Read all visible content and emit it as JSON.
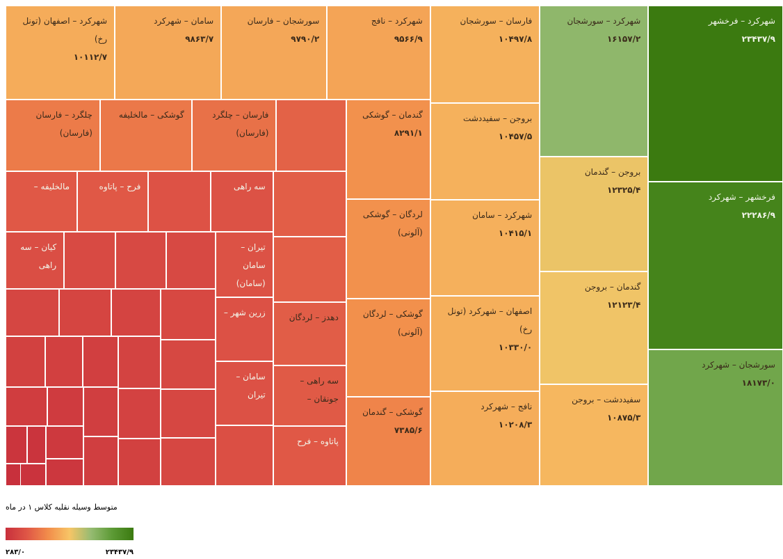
{
  "chart_data": {
    "type": "treemap",
    "categories": [
      "شهرکرد – فرخشهر",
      "فرخشهر – شهرکرد",
      "سورشجان – شهرکرد",
      "شهرکرد – سورشجان",
      "بروجن – گندمان",
      "گندمان – بروجن",
      "سفیددشت – بروجن",
      "فارسان – سورشجان",
      "بروجن – سفیددشت",
      "شهرکرد – سامان",
      "اصفهان – شهرکرد (تونل رخ)",
      "نافج – شهرکرد",
      "شهرکرد – اصفهان (تونل رخ)",
      "سامان – شهرکرد",
      "سورشجان – فارسان",
      "شهرکرد – نافج",
      "گندمان – گوشکی",
      "لردگان – گوشکی (آلونی)",
      "گوشکی – لردگان (آلونی)",
      "گوشکی – گندمان",
      "چلگرد – فارسان (فارسان)",
      "گوشکی – مالخلیفه",
      "فارسان – چلگرد (فارسان)",
      null,
      null,
      null,
      "دهدز – لردگان",
      "سه راهی – جونقان –",
      "پاتاوه – فرح",
      "مالخلیفه –",
      "فرح – پاتاوه",
      null,
      "سه راهی",
      "تیران – سامان (سامان)",
      "زرین شهر –",
      "سامان – تیران",
      null,
      "کیان – سه راهی",
      null,
      null,
      null,
      null,
      null,
      null,
      null,
      null,
      null,
      null,
      null,
      null,
      null,
      null,
      null,
      null,
      null,
      null,
      null,
      null,
      null,
      null,
      null,
      null,
      null,
      null
    ],
    "values": [
      23437.9,
      22286.9,
      18173.0,
      16157.2,
      12325.4,
      12123.4,
      10875.3,
      10497.8,
      10457.5,
      10415.1,
      10330.0,
      10208.3,
      10112.7,
      9863.7,
      9790.2,
      9566.9,
      8291.1,
      8250,
      8180,
      7385.6,
      6720,
      6520,
      6020,
      4970,
      4720,
      4710,
      4600,
      4390,
      4300,
      4280,
      4250,
      3730,
      3720,
      3700,
      3650,
      3600,
      3450,
      3300,
      2900,
      2850,
      2800,
      2750,
      2700,
      2650,
      2600,
      2500,
      2400,
      2300,
      2200,
      2100,
      2000,
      2000,
      1900,
      1800,
      1700,
      1700,
      1600,
      1400,
      1200,
      1000,
      800,
      700,
      600,
      283
    ],
    "value_labels": [
      "۲۳۴۳۷/۹",
      "۲۲۲۸۶/۹",
      "۱۸۱۷۳/۰",
      "۱۶۱۵۷/۲",
      "۱۲۳۲۵/۴",
      "۱۲۱۲۳/۴",
      "۱۰۸۷۵/۳",
      "۱۰۴۹۷/۸",
      "۱۰۴۵۷/۵",
      "۱۰۴۱۵/۱",
      "۱۰۳۳۰/۰",
      "۱۰۲۰۸/۳",
      "۱۰۱۱۲/۷",
      "۹۸۶۳/۷",
      "۹۷۹۰/۲",
      "۹۵۶۶/۹",
      "۸۲۹۱/۱",
      null,
      null,
      "۷۳۸۵/۶",
      null,
      null,
      null,
      null,
      null,
      null,
      null,
      null,
      null,
      null,
      null,
      null,
      null,
      null,
      null,
      null,
      null,
      null,
      null,
      null,
      null,
      null,
      null,
      null,
      null,
      null,
      null,
      null,
      null,
      null,
      null,
      null,
      null,
      null,
      null,
      null,
      null,
      null,
      null,
      null,
      null,
      null,
      null,
      null
    ],
    "color_scale": [
      "#c8303c",
      "#df5646",
      "#f28d4b",
      "#f7c566",
      "#96bb72",
      "#5c9a35",
      "#3b7a10"
    ],
    "clim": [
      283,
      23437.9
    ],
    "clim_labels": [
      "۲۸۳/۰",
      "۲۳۴۳۷/۹"
    ],
    "legend_title": "متوسط وسیله نقلیه کلاس ۱ در ماه"
  }
}
